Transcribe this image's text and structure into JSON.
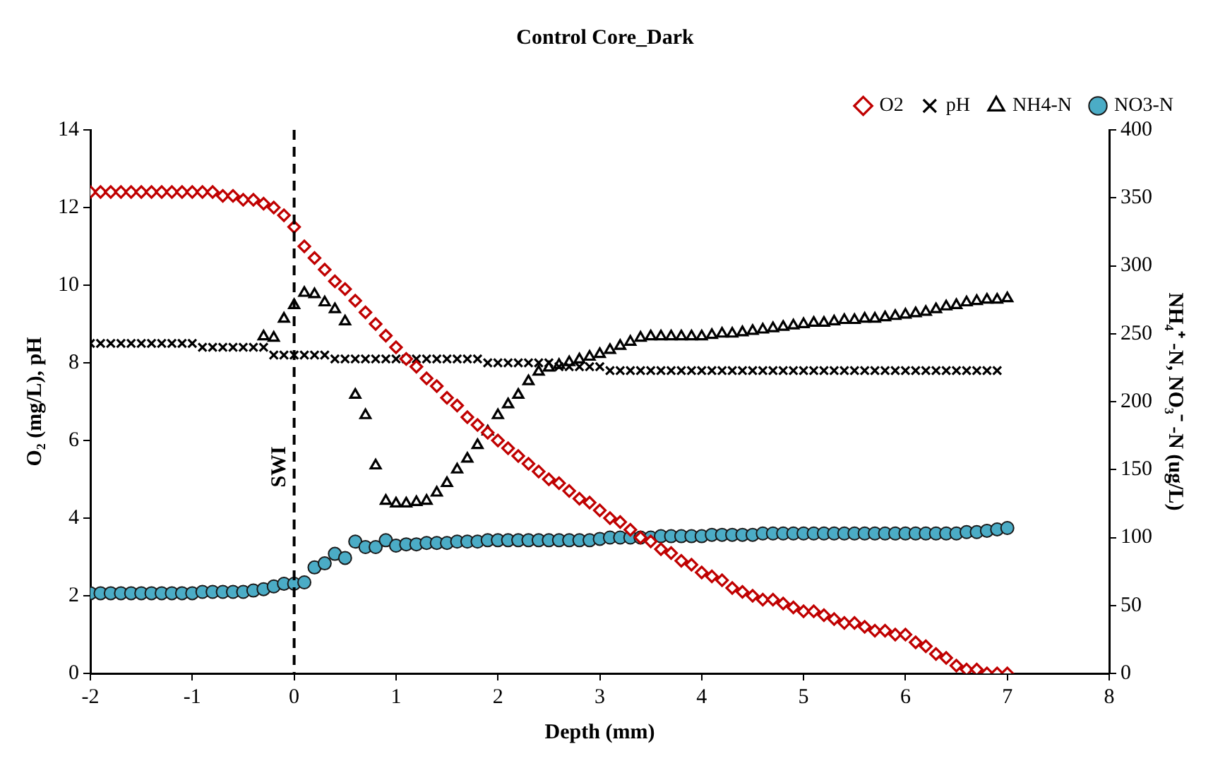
{
  "chart_data": {
    "type": "scatter",
    "title": "Control Core_Dark",
    "xlabel": "Depth (mm)",
    "ylabel": "O₂ (mg/L), pH",
    "y2label": "NH₄⁺ -N, NO₃⁻ -N (ug/L)",
    "xlim": [
      -2,
      8
    ],
    "xticks": [
      -2,
      -1,
      0,
      1,
      2,
      3,
      4,
      5,
      6,
      7,
      8
    ],
    "ylim": [
      0,
      14
    ],
    "yticks": [
      0,
      2,
      4,
      6,
      8,
      10,
      12,
      14
    ],
    "y2lim": [
      0,
      400
    ],
    "y2ticks": [
      0,
      50,
      100,
      150,
      200,
      250,
      300,
      350,
      400
    ],
    "grid": false,
    "legend": "top right",
    "ref_lines": [
      {
        "axis": "x",
        "value": 0,
        "label": "SWI",
        "line_style": "dashed",
        "color": "#000000"
      }
    ],
    "series": [
      {
        "name": "O2",
        "color": "#c00000",
        "marker": "diamond",
        "x": [
          -2,
          -1.9,
          -1.8,
          -1.7,
          -1.6,
          -1.5,
          -1.4,
          -1.3,
          -1.2,
          -1.1,
          -1,
          -0.9,
          -0.8,
          -0.7,
          -0.6,
          -0.5,
          -0.4,
          -0.3,
          -0.2,
          -0.1,
          0,
          0.1,
          0.2,
          0.3,
          0.4,
          0.5,
          0.6,
          0.7,
          0.8,
          0.9,
          1,
          1.1,
          1.2,
          1.3,
          1.4,
          1.5,
          1.6,
          1.7,
          1.8,
          1.9,
          2,
          2.1,
          2.2,
          2.3,
          2.4,
          2.5,
          2.6,
          2.7,
          2.8,
          2.9,
          3,
          3.1,
          3.2,
          3.3,
          3.4,
          3.5,
          3.6,
          3.7,
          3.8,
          3.9,
          4,
          4.1,
          4.2,
          4.3,
          4.4,
          4.5,
          4.6,
          4.7,
          4.8,
          4.9,
          5,
          5.1,
          5.2,
          5.3,
          5.4,
          5.5,
          5.6,
          5.7,
          5.8,
          5.9,
          6,
          6.1,
          6.2,
          6.3,
          6.4,
          6.5,
          6.6,
          6.7,
          6.8,
          6.9,
          7
        ],
        "values": [
          12.4,
          12.4,
          12.4,
          12.4,
          12.4,
          12.4,
          12.4,
          12.4,
          12.4,
          12.4,
          12.4,
          12.4,
          12.4,
          12.3,
          12.3,
          12.2,
          12.2,
          12.1,
          12.0,
          11.8,
          11.5,
          11.0,
          10.7,
          10.4,
          10.1,
          9.9,
          9.6,
          9.3,
          9.0,
          8.7,
          8.4,
          8.1,
          7.9,
          7.6,
          7.4,
          7.1,
          6.9,
          6.6,
          6.4,
          6.2,
          6.0,
          5.8,
          5.6,
          5.4,
          5.2,
          5.0,
          4.9,
          4.7,
          4.5,
          4.4,
          4.2,
          4.0,
          3.9,
          3.7,
          3.5,
          3.4,
          3.2,
          3.1,
          2.9,
          2.8,
          2.6,
          2.5,
          2.4,
          2.2,
          2.1,
          2.0,
          1.9,
          1.9,
          1.8,
          1.7,
          1.6,
          1.6,
          1.5,
          1.4,
          1.3,
          1.3,
          1.2,
          1.1,
          1.1,
          1.0,
          1.0,
          0.8,
          0.7,
          0.5,
          0.4,
          0.2,
          0.1,
          0.1,
          0,
          0,
          0
        ]
      },
      {
        "name": "pH",
        "color": "#000000",
        "marker": "cross",
        "x": [
          -2,
          -1.9,
          -1.8,
          -1.7,
          -1.6,
          -1.5,
          -1.4,
          -1.3,
          -1.2,
          -1.1,
          -1,
          -0.9,
          -0.8,
          -0.7,
          -0.6,
          -0.5,
          -0.4,
          -0.3,
          -0.2,
          -0.1,
          0,
          0.1,
          0.2,
          0.3,
          0.4,
          0.5,
          0.6,
          0.7,
          0.8,
          0.9,
          1,
          1.1,
          1.2,
          1.3,
          1.4,
          1.5,
          1.6,
          1.7,
          1.8,
          1.9,
          2,
          2.1,
          2.2,
          2.3,
          2.4,
          2.5,
          2.6,
          2.7,
          2.8,
          2.9,
          3,
          3.1,
          3.2,
          3.3,
          3.4,
          3.5,
          3.6,
          3.7,
          3.8,
          3.9,
          4,
          4.1,
          4.2,
          4.3,
          4.4,
          4.5,
          4.6,
          4.7,
          4.8,
          4.9,
          5,
          5.1,
          5.2,
          5.3,
          5.4,
          5.5,
          5.6,
          5.7,
          5.8,
          5.9,
          6,
          6.1,
          6.2,
          6.3,
          6.4,
          6.5,
          6.6,
          6.7,
          6.8,
          6.9
        ],
        "values": [
          8.5,
          8.5,
          8.5,
          8.5,
          8.5,
          8.5,
          8.5,
          8.5,
          8.5,
          8.5,
          8.5,
          8.4,
          8.4,
          8.4,
          8.4,
          8.4,
          8.4,
          8.4,
          8.2,
          8.2,
          8.2,
          8.2,
          8.2,
          8.2,
          8.1,
          8.1,
          8.1,
          8.1,
          8.1,
          8.1,
          8.1,
          8.1,
          8.1,
          8.1,
          8.1,
          8.1,
          8.1,
          8.1,
          8.1,
          8.0,
          8.0,
          8.0,
          8.0,
          8.0,
          8.0,
          8.0,
          7.9,
          7.9,
          7.9,
          7.9,
          7.9,
          7.8,
          7.8,
          7.8,
          7.8,
          7.8,
          7.8,
          7.8,
          7.8,
          7.8,
          7.8,
          7.8,
          7.8,
          7.8,
          7.8,
          7.8,
          7.8,
          7.8,
          7.8,
          7.8,
          7.8,
          7.8,
          7.8,
          7.8,
          7.8,
          7.8,
          7.8,
          7.8,
          7.8,
          7.8,
          7.8,
          7.8,
          7.8,
          7.8,
          7.8,
          7.8,
          7.8,
          7.8,
          7.8,
          7.8
        ]
      },
      {
        "name": "NH4-N",
        "color": "#000000",
        "marker": "triangle",
        "axis": "y2",
        "x": [
          -0.3,
          -0.2,
          -0.1,
          0,
          0.1,
          0.2,
          0.3,
          0.4,
          0.5,
          0.6,
          0.7,
          0.8,
          0.9,
          1,
          1.1,
          1.2,
          1.3,
          1.4,
          1.5,
          1.6,
          1.7,
          1.8,
          1.9,
          2,
          2.1,
          2.2,
          2.3,
          2.4,
          2.5,
          2.6,
          2.7,
          2.8,
          2.9,
          3,
          3.1,
          3.2,
          3.3,
          3.4,
          3.5,
          3.6,
          3.7,
          3.8,
          3.9,
          4,
          4.1,
          4.2,
          4.3,
          4.4,
          4.5,
          4.6,
          4.7,
          4.8,
          4.9,
          5,
          5.1,
          5.2,
          5.3,
          5.4,
          5.5,
          5.6,
          5.7,
          5.8,
          5.9,
          6,
          6.1,
          6.2,
          6.3,
          6.4,
          6.5,
          6.6,
          6.7,
          6.8,
          6.9,
          7
        ],
        "values": [
          248,
          247,
          261,
          271,
          280,
          279,
          273,
          268,
          259,
          205,
          190,
          153,
          127,
          125,
          125,
          126,
          127,
          133,
          140,
          150,
          158,
          168,
          178,
          190,
          198,
          205,
          215,
          222,
          225,
          227,
          229,
          231,
          233,
          235,
          238,
          241,
          244,
          247,
          248,
          248,
          248,
          248,
          248,
          248,
          249,
          250,
          250,
          251,
          252,
          253,
          254,
          255,
          256,
          257,
          258,
          258,
          259,
          260,
          260,
          261,
          261,
          262,
          263,
          264,
          265,
          266,
          268,
          270,
          271,
          273,
          274,
          275,
          275,
          276
        ]
      },
      {
        "name": "NO3-N",
        "color": "#4bacc6",
        "marker": "circle",
        "axis": "y2",
        "x": [
          -2,
          -1.9,
          -1.8,
          -1.7,
          -1.6,
          -1.5,
          -1.4,
          -1.3,
          -1.2,
          -1.1,
          -1,
          -0.9,
          -0.8,
          -0.7,
          -0.6,
          -0.5,
          -0.4,
          -0.3,
          -0.2,
          -0.1,
          0,
          0.1,
          0.2,
          0.3,
          0.4,
          0.5,
          0.6,
          0.7,
          0.8,
          0.9,
          1,
          1.1,
          1.2,
          1.3,
          1.4,
          1.5,
          1.6,
          1.7,
          1.8,
          1.9,
          2,
          2.1,
          2.2,
          2.3,
          2.4,
          2.5,
          2.6,
          2.7,
          2.8,
          2.9,
          3,
          3.1,
          3.2,
          3.3,
          3.4,
          3.5,
          3.6,
          3.7,
          3.8,
          3.9,
          4,
          4.1,
          4.2,
          4.3,
          4.4,
          4.5,
          4.6,
          4.7,
          4.8,
          4.9,
          5,
          5.1,
          5.2,
          5.3,
          5.4,
          5.5,
          5.6,
          5.7,
          5.8,
          5.9,
          6,
          6.1,
          6.2,
          6.3,
          6.4,
          6.5,
          6.6,
          6.7,
          6.8,
          6.9,
          7
        ],
        "values": [
          59,
          59,
          59,
          59,
          59,
          59,
          59,
          59,
          59,
          59,
          59,
          60,
          60,
          60,
          60,
          60,
          61,
          62,
          64,
          66,
          66,
          67,
          78,
          81,
          88,
          85,
          97,
          93,
          93,
          98,
          94,
          95,
          95,
          96,
          96,
          96,
          97,
          97,
          97,
          98,
          98,
          98,
          98,
          98,
          98,
          98,
          98,
          98,
          98,
          98,
          99,
          100,
          100,
          100,
          100,
          100,
          101,
          101,
          101,
          101,
          101,
          102,
          102,
          102,
          102,
          102,
          103,
          103,
          103,
          103,
          103,
          103,
          103,
          103,
          103,
          103,
          103,
          103,
          103,
          103,
          103,
          103,
          103,
          103,
          103,
          103,
          104,
          104,
          105,
          106,
          107
        ]
      }
    ]
  }
}
